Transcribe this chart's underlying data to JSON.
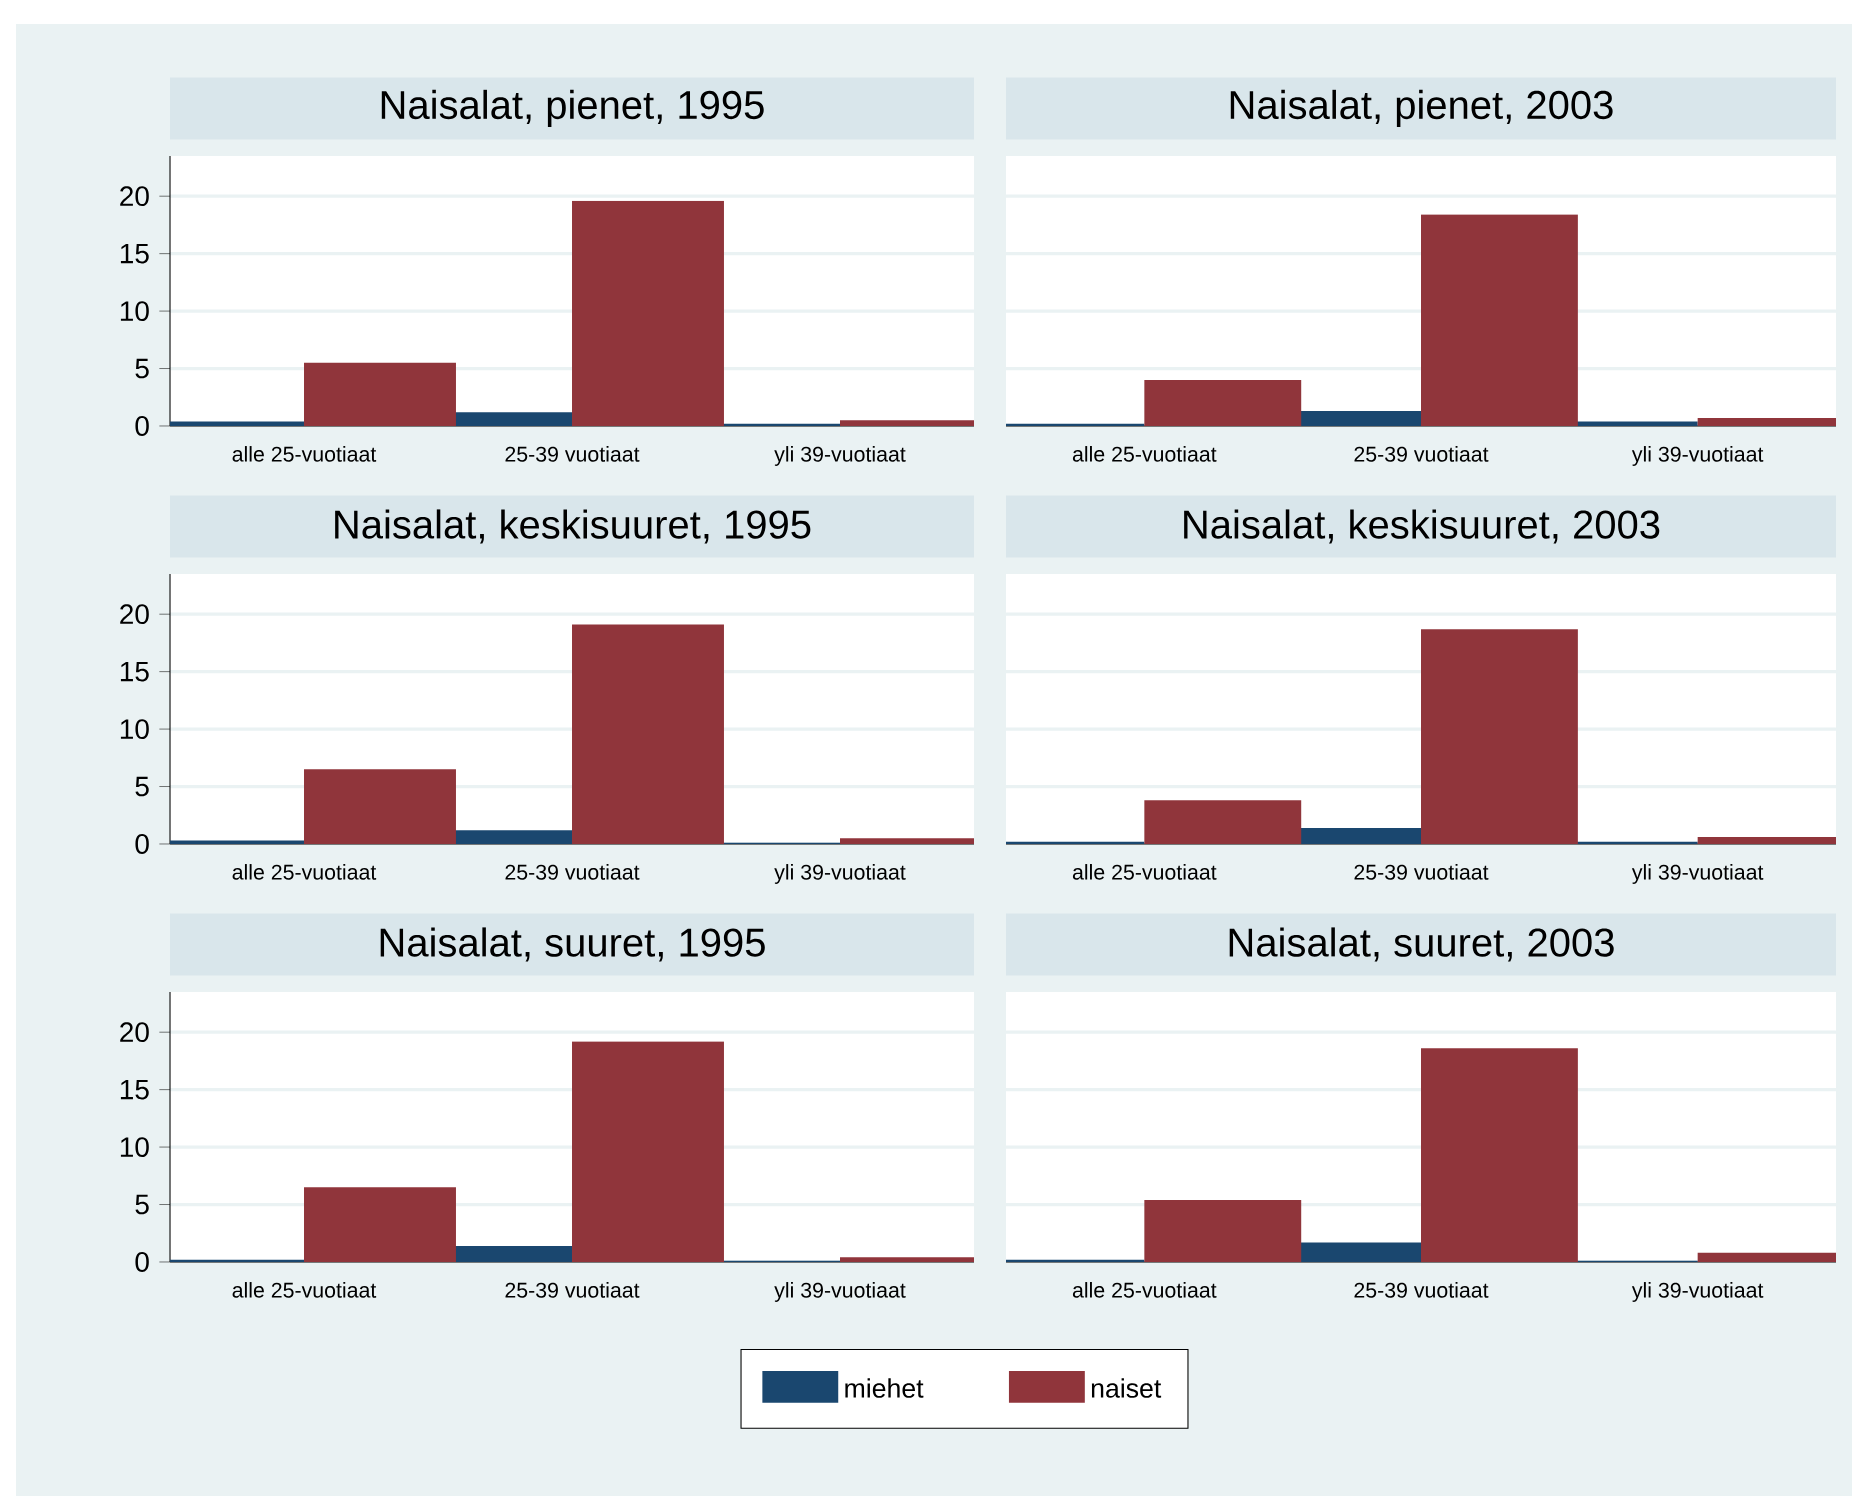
{
  "chart_data": [
    {
      "type": "bar",
      "title": "Naisalat, pienet, 1995",
      "categories": [
        "alle 25-vuotiaat",
        "25-39 vuotiaat",
        "yli 39-vuotiaat"
      ],
      "series": [
        {
          "color": "#1a476f",
          "values": [
            0.4,
            1.2,
            0.2
          ]
        },
        {
          "color": "#90353b",
          "values": [
            5.5,
            19.6,
            0.5
          ]
        }
      ],
      "ylim": [
        0,
        23.5
      ],
      "yticks": [
        0,
        5,
        10,
        15,
        20
      ],
      "grid": "y"
    },
    {
      "type": "bar",
      "title": "Naisalat, pienet, 2003",
      "categories": [
        "alle 25-vuotiaat",
        "25-39 vuotiaat",
        "yli 39-vuotiaat"
      ],
      "series": [
        {
          "color": "#1a476f",
          "values": [
            0.2,
            1.3,
            0.4
          ]
        },
        {
          "color": "#90353b",
          "values": [
            4.0,
            18.4,
            0.7
          ]
        }
      ],
      "ylim": [
        0,
        23.5
      ],
      "yticks": [
        0,
        5,
        10,
        15,
        20
      ],
      "grid": "y",
      "tick_labels": "x"
    },
    {
      "type": "bar",
      "title": "Naisalat, keskisuuret, 1995",
      "categories": [
        "alle 25-vuotiaat",
        "25-39 vuotiaat",
        "yli 39-vuotiaat"
      ],
      "series": [
        {
          "color": "#1a476f",
          "values": [
            0.3,
            1.2,
            0.1
          ]
        },
        {
          "color": "#90353b",
          "values": [
            6.5,
            19.1,
            0.5
          ]
        }
      ],
      "ylim": [
        0,
        23.5
      ],
      "yticks": [
        0,
        5,
        10,
        15,
        20
      ],
      "grid": "y"
    },
    {
      "type": "bar",
      "title": "Naisalat, keskisuuret, 2003",
      "categories": [
        "alle 25-vuotiaat",
        "25-39 vuotiaat",
        "yli 39-vuotiaat"
      ],
      "series": [
        {
          "color": "#1a476f",
          "values": [
            0.2,
            1.4,
            0.2
          ]
        },
        {
          "color": "#90353b",
          "values": [
            3.8,
            18.7,
            0.6
          ]
        }
      ],
      "ylim": [
        0,
        23.5
      ],
      "yticks": [
        0,
        5,
        10,
        15,
        20
      ],
      "grid": "y",
      "tick_labels": "x"
    },
    {
      "type": "bar",
      "title": "Naisalat, suuret, 1995",
      "categories": [
        "alle 25-vuotiaat",
        "25-39 vuotiaat",
        "yli 39-vuotiaat"
      ],
      "series": [
        {
          "color": "#1a476f",
          "values": [
            0.2,
            1.4,
            0.1
          ]
        },
        {
          "color": "#90353b",
          "values": [
            6.5,
            19.2,
            0.4
          ]
        }
      ],
      "ylim": [
        0,
        23.5
      ],
      "yticks": [
        0,
        5,
        10,
        15,
        20
      ],
      "grid": "y"
    },
    {
      "type": "bar",
      "title": "Naisalat, suuret, 2003",
      "categories": [
        "alle 25-vuotiaat",
        "25-39 vuotiaat",
        "yli 39-vuotiaat"
      ],
      "series": [
        {
          "name": "miehet",
          "color": "#1a476f",
          "values": [
            0.2,
            1.7,
            0.1
          ]
        },
        {
          "name": "naiset",
          "color": "#90353b",
          "values": [
            5.4,
            18.6,
            0.8
          ]
        }
      ],
      "ylim": [
        0,
        23.5
      ],
      "yticks": [
        0,
        5,
        10,
        15,
        20
      ],
      "grid": "y",
      "tick_labels": "x",
      "legend": "bottom"
    }
  ]
}
